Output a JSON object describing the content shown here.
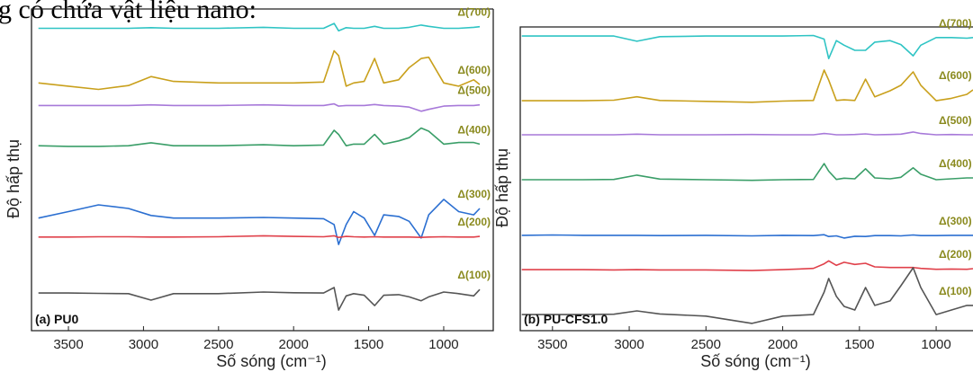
{
  "header": {
    "text": "g có chứa vật liệu nano:"
  },
  "chart_data": [
    {
      "type": "line",
      "title": "(a)  PU0",
      "x_label": "Số sóng (cm⁻¹)",
      "y_label": "Độ hấp thụ",
      "x": [
        3700,
        3500,
        3300,
        3100,
        2950,
        2800,
        2500,
        2200,
        2000,
        1800,
        1730,
        1700,
        1650,
        1600,
        1530,
        1460,
        1400,
        1300,
        1230,
        1150,
        1100,
        1000,
        900,
        800,
        760
      ],
      "xlim": [
        3746,
        670
      ],
      "xticks": [
        3500,
        3000,
        2500,
        2000,
        1500,
        1000
      ],
      "ylim": [
        0,
        100
      ],
      "series": [
        {
          "name": "Δ(700)",
          "color": "#2fc4c4",
          "values": [
            94,
            94,
            94,
            94,
            94.2,
            94,
            94,
            94.3,
            94,
            94,
            95.5,
            93.2,
            94.2,
            94,
            94,
            94.6,
            94,
            94,
            94.3,
            95,
            94.6,
            94,
            94,
            94.3,
            94.5
          ]
        },
        {
          "name": "Δ(600)",
          "color": "#c9a01c",
          "values": [
            77,
            76,
            75,
            76.2,
            79,
            77.5,
            77,
            77,
            77,
            77.3,
            87,
            85.5,
            76,
            77,
            77.5,
            84.6,
            77,
            78,
            81.8,
            84.6,
            85,
            77,
            76,
            78,
            76.5
          ]
        },
        {
          "name": "Δ(500)",
          "color": "#a779d9",
          "values": [
            70,
            70,
            70,
            70,
            70.2,
            70,
            70,
            70.2,
            70,
            70,
            70.5,
            69.8,
            70,
            70,
            70,
            70.3,
            70,
            69.8,
            69.5,
            68.2,
            68.8,
            69.8,
            70,
            70,
            70.2
          ]
        },
        {
          "name": "Δ(400)",
          "color": "#3a9e68",
          "values": [
            57.5,
            57.3,
            57.3,
            57.5,
            58.4,
            57.5,
            57.5,
            57.8,
            57.5,
            57.7,
            62.3,
            61,
            57.5,
            58,
            58,
            61,
            58,
            59,
            60,
            63,
            62,
            58,
            58.5,
            58.5,
            58
          ]
        },
        {
          "name": "Δ(300)",
          "color": "#2b6fd1",
          "values": [
            35,
            37,
            39.1,
            38,
            35.8,
            35,
            35,
            35.2,
            35,
            34.8,
            33,
            26.8,
            33,
            37,
            35,
            29.6,
            36,
            35.5,
            34,
            28.8,
            36,
            40.8,
            37,
            36,
            38
          ]
        },
        {
          "name": "Δ(200)",
          "color": "#e0404a",
          "values": [
            29.1,
            29.1,
            29.2,
            29.2,
            29.1,
            29.1,
            29.2,
            29.5,
            29.3,
            29.2,
            29.5,
            29,
            29.3,
            29.2,
            29.1,
            29.2,
            29.1,
            29.1,
            29.1,
            29,
            29.1,
            29.2,
            29.1,
            29.1,
            29.3
          ]
        },
        {
          "name": "Δ(100)",
          "color": "#555555",
          "values": [
            11.7,
            11.7,
            11.6,
            11.5,
            9.5,
            11.5,
            11.5,
            12,
            11.8,
            11.7,
            13.4,
            6.4,
            10.8,
            11.5,
            11,
            7.8,
            11,
            11.2,
            10.5,
            9.3,
            10.5,
            12,
            11.5,
            10.8,
            12.8
          ]
        }
      ]
    },
    {
      "type": "line",
      "title": "(b)  PU-CFS1.0",
      "x_label": "Số sóng (cm⁻¹)",
      "y_label": "Độ hấp thụ",
      "x": [
        3700,
        3500,
        3300,
        3100,
        2950,
        2800,
        2500,
        2200,
        2000,
        1800,
        1730,
        1700,
        1650,
        1600,
        1530,
        1460,
        1400,
        1300,
        1230,
        1150,
        1100,
        1000,
        900,
        800,
        760
      ],
      "xlim": [
        3710,
        760
      ],
      "xticks": [
        3500,
        3000,
        2500,
        2000,
        1500,
        1000
      ],
      "ylim": [
        0,
        100
      ],
      "series": [
        {
          "name": "Δ(700)",
          "color": "#2fc4c4",
          "values": [
            97,
            97,
            97,
            97,
            95.3,
            96.8,
            97,
            97,
            97,
            97.2,
            96,
            89.6,
            95.5,
            94,
            92.3,
            92.3,
            95,
            95.5,
            94.2,
            90.5,
            94,
            96.5,
            96.5,
            96.3,
            96.5
          ]
        },
        {
          "name": "Δ(600)",
          "color": "#c9a01c",
          "values": [
            75.7,
            75.7,
            75.7,
            75.9,
            77,
            75.8,
            75.5,
            75.2,
            75.6,
            75.8,
            85.8,
            82.5,
            75.8,
            76,
            75.8,
            82.8,
            77,
            79,
            80.8,
            85.2,
            80.8,
            75.7,
            76.5,
            77.8,
            79.3
          ]
        },
        {
          "name": "Δ(500)",
          "color": "#a779d9",
          "values": [
            64.5,
            64.5,
            64.5,
            64.5,
            64.7,
            64.5,
            64.5,
            64.6,
            64.5,
            64.5,
            64.9,
            64.8,
            64.5,
            64.5,
            64.6,
            64.8,
            64.5,
            64.6,
            64.7,
            65.4,
            64.9,
            64.5,
            64.6,
            64.5,
            64.5
          ]
        },
        {
          "name": "Δ(400)",
          "color": "#3a9e68",
          "values": [
            49.7,
            49.7,
            49.7,
            49.8,
            51.2,
            49.9,
            49.7,
            49.5,
            49.7,
            49.8,
            55,
            52.5,
            49.8,
            50.2,
            50,
            53.3,
            50.3,
            50,
            50.5,
            53.6,
            51.5,
            49.7,
            50,
            50.3,
            50.3
          ]
        },
        {
          "name": "Δ(300)",
          "color": "#2b6fd1",
          "values": [
            31.4,
            31.5,
            31.4,
            31.4,
            31.4,
            31.3,
            31.4,
            31.2,
            31.4,
            31.3,
            31.6,
            31,
            31.2,
            30.5,
            31.1,
            31,
            31.3,
            31.3,
            31.2,
            31.5,
            31.3,
            31.3,
            31.4,
            31.4,
            31.4
          ]
        },
        {
          "name": "Δ(200)",
          "color": "#e0404a",
          "values": [
            20.1,
            20.1,
            20.1,
            20,
            20.1,
            20,
            20,
            19.8,
            20.1,
            20.5,
            22,
            23,
            21.5,
            22.5,
            21.8,
            22.2,
            21,
            20.8,
            20.8,
            20.8,
            20.5,
            20.2,
            20.3,
            20.2,
            20.4
          ]
        },
        {
          "name": "Δ(100)",
          "color": "#555555",
          "values": [
            5.3,
            5.3,
            5.3,
            5.4,
            6.5,
            5.5,
            4.8,
            2.4,
            4.8,
            5.3,
            12.7,
            17.2,
            11.3,
            8,
            6.8,
            14.2,
            8.3,
            9.8,
            14.8,
            20.7,
            14.2,
            5.3,
            6.8,
            8.3,
            8.3
          ]
        }
      ]
    }
  ]
}
